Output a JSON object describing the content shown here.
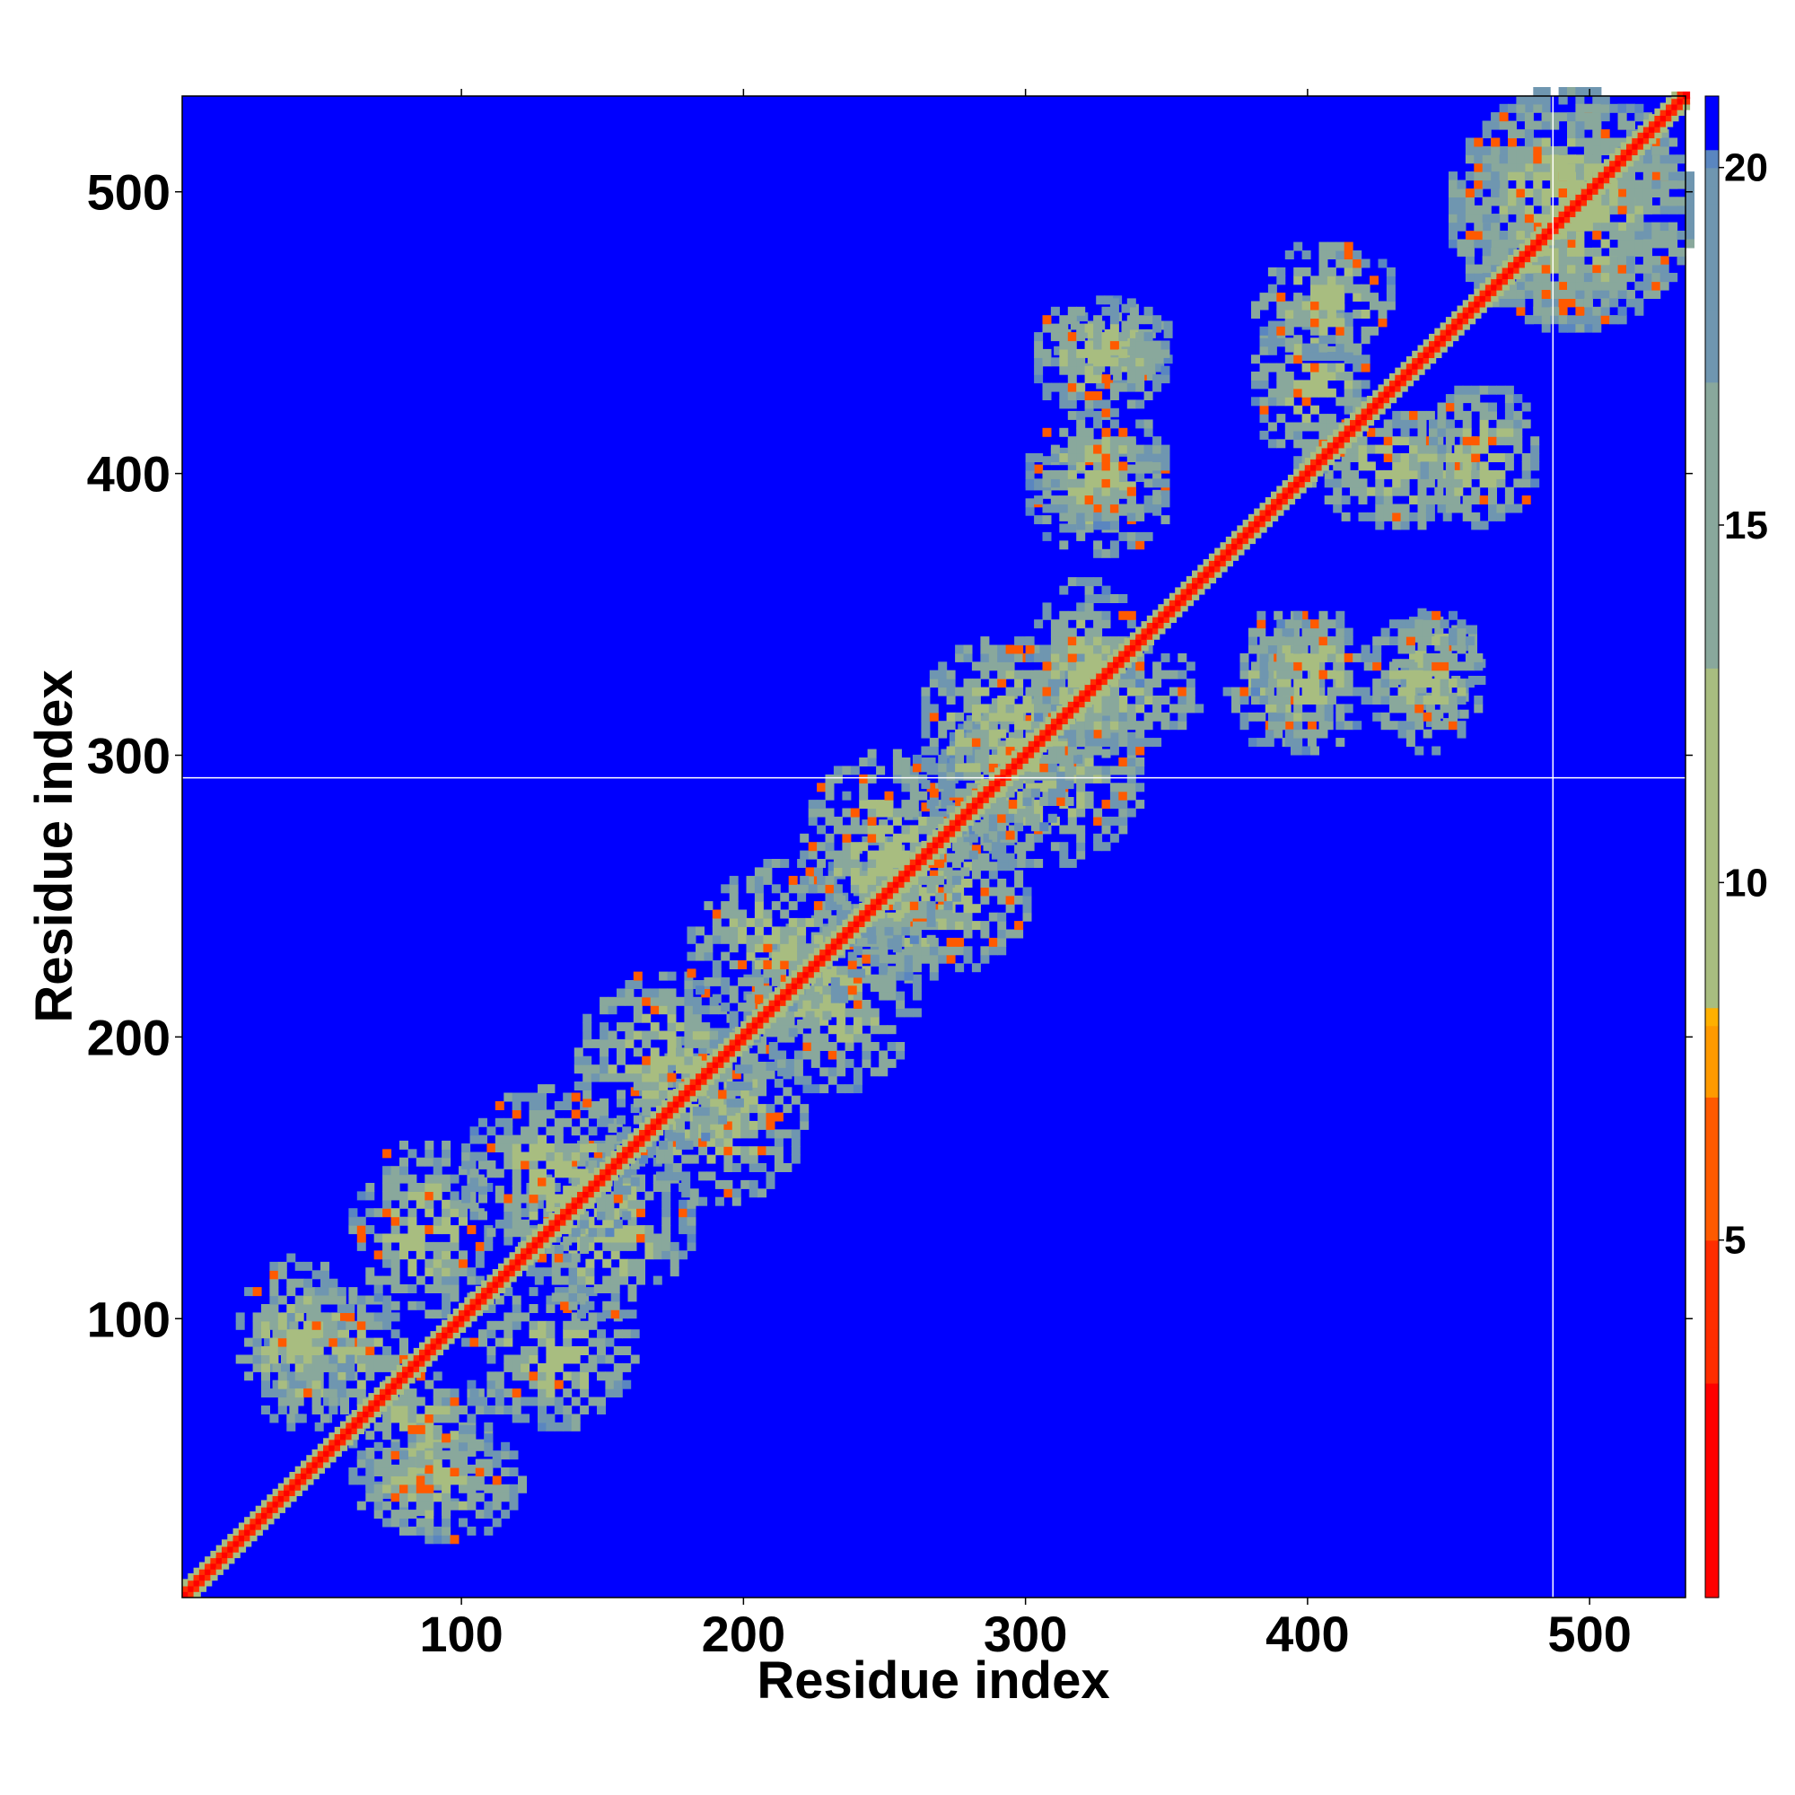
{
  "chart_data": {
    "type": "heatmap",
    "title": "",
    "xlabel": "Residue index",
    "ylabel": "Residue index",
    "xlim": [
      1,
      534
    ],
    "ylim": [
      1,
      534
    ],
    "x_ticks": [
      100,
      200,
      300,
      400,
      500
    ],
    "y_ticks": [
      100,
      200,
      300,
      400,
      500
    ],
    "grid": false,
    "colorbar": {
      "range": [
        0,
        21
      ],
      "ticks": [
        5,
        10,
        15,
        20
      ],
      "stops": [
        {
          "value": 0,
          "color": "#ff0000"
        },
        {
          "value": 3,
          "color": "#ff2d00"
        },
        {
          "value": 5,
          "color": "#ff5a00"
        },
        {
          "value": 7,
          "color": "#ff9a00"
        },
        {
          "value": 8,
          "color": "#ffb000"
        },
        {
          "value": 8.01,
          "color": "#a8bd80"
        },
        {
          "value": 13,
          "color": "#89a89c"
        },
        {
          "value": 17,
          "color": "#6f96b0"
        },
        {
          "value": 20,
          "color": "#5a86c0"
        },
        {
          "value": 20.01,
          "color": "#0000ff"
        },
        {
          "value": 21,
          "color": "#0000ff"
        }
      ]
    },
    "background_value": 21,
    "diagonal_band": {
      "width_residues": 4,
      "value": 2
    },
    "contact_regions": [
      {
        "x": [
          30,
          80
        ],
        "y": [
          60,
          110
        ]
      },
      {
        "x": [
          60,
          120
        ],
        "y": [
          20,
          60
        ]
      },
      {
        "x": [
          100,
          160
        ],
        "y": [
          60,
          110
        ]
      },
      {
        "x": [
          120,
          180
        ],
        "y": [
          100,
          160
        ]
      },
      {
        "x": [
          160,
          220
        ],
        "y": [
          140,
          200
        ]
      },
      {
        "x": [
          200,
          260
        ],
        "y": [
          180,
          240
        ]
      },
      {
        "x": [
          230,
          300
        ],
        "y": [
          220,
          280
        ]
      },
      {
        "x": [
          270,
          340
        ],
        "y": [
          260,
          320
        ]
      },
      {
        "x": [
          300,
          360
        ],
        "y": [
          300,
          340
        ]
      },
      {
        "x": [
          300,
          350
        ],
        "y": [
          370,
          410
        ]
      },
      {
        "x": [
          310,
          350
        ],
        "y": [
          430,
          460
        ]
      },
      {
        "x": [
          380,
          420
        ],
        "y": [
          300,
          350
        ]
      },
      {
        "x": [
          420,
          460
        ],
        "y": [
          300,
          350
        ]
      },
      {
        "x": [
          400,
          460
        ],
        "y": [
          380,
          420
        ]
      },
      {
        "x": [
          380,
          430
        ],
        "y": [
          440,
          480
        ]
      },
      {
        "x": [
          450,
          534
        ],
        "y": [
          450,
          534
        ]
      }
    ],
    "crosshair": {
      "x": 487,
      "y": 292
    }
  }
}
